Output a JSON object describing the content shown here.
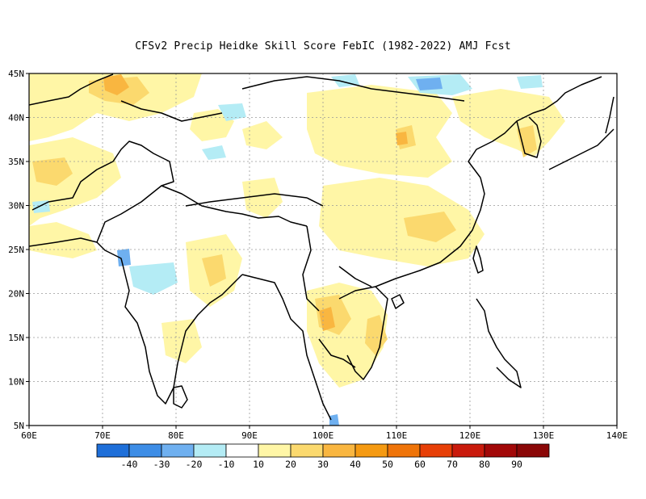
{
  "title": "CFSv2 Precip Heidke Skill Score FebIC (1982-2022) AMJ Fcst",
  "lat_labels": [
    "45N",
    "40N",
    "35N",
    "30N",
    "25N",
    "20N",
    "15N",
    "10N",
    "5N"
  ],
  "lon_labels": [
    "60E",
    "70E",
    "80E",
    "90E",
    "100E",
    "110E",
    "120E",
    "130E",
    "140E"
  ],
  "extent": {
    "lon": [
      60,
      140
    ],
    "lat": [
      5,
      45
    ]
  },
  "colorbar": {
    "labels": [
      "-40",
      "-30",
      "-20",
      "-10",
      "10",
      "20",
      "30",
      "40",
      "50",
      "60",
      "70",
      "80",
      "90"
    ],
    "colors": [
      "#1e6fd9",
      "#3d8de6",
      "#6fb0f0",
      "#b4ecf5",
      "#ffffff",
      "#fff6a6",
      "#fbd96e",
      "#f9b640",
      "#f59a12",
      "#ef7409",
      "#e73f07",
      "#c91a0c",
      "#a20808",
      "#8a0707"
    ]
  },
  "field_colors": {
    "light_yellow": "#fff6a6",
    "yellow": "#fbd96e",
    "orange": "#f9b640",
    "light_blue": "#b4ecf5",
    "blue": "#6fb0f0"
  }
}
